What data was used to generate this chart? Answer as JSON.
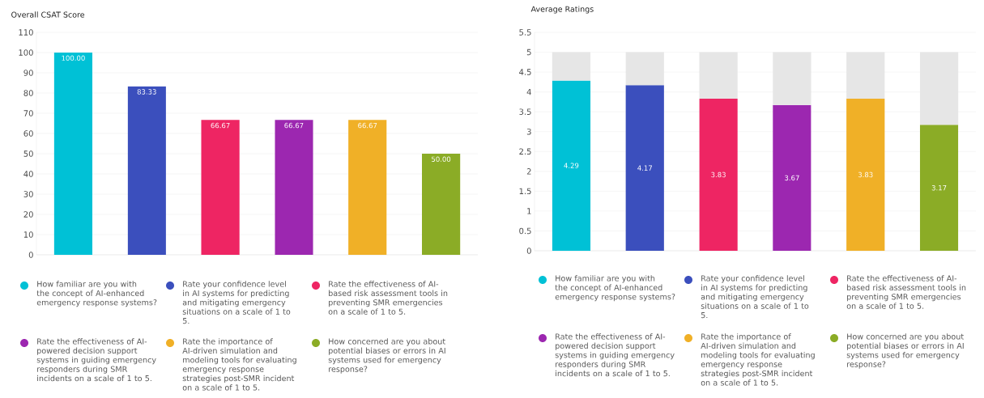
{
  "chart_data": [
    {
      "type": "bar",
      "title": "Overall CSAT Score",
      "categories": [
        null,
        null,
        null,
        null,
        null,
        null
      ],
      "series": [
        {
          "name": "How familiar are you with the concept of AI-enhanced emergency response systems?",
          "color": "#00c1d6",
          "values": [
            100,
            null,
            null,
            null,
            null,
            null
          ],
          "value_labels": [
            "100.00",
            null,
            null,
            null,
            null,
            null
          ]
        },
        {
          "name": "Rate your confidence level in AI systems for predicting and mitigating emergency situations on a scale of 1 to 5.",
          "color": "#3b4fbd",
          "values": [
            null,
            83.33,
            null,
            null,
            null,
            null
          ],
          "value_labels": [
            null,
            "83.33",
            null,
            null,
            null,
            null
          ]
        },
        {
          "name": "Rate the effectiveness of AI-based risk assessment tools in preventing SMR emergencies on a scale of 1 to 5.",
          "color": "#ee2563",
          "values": [
            null,
            null,
            66.67,
            null,
            null,
            null
          ],
          "value_labels": [
            null,
            null,
            "66.67",
            null,
            null,
            null
          ]
        },
        {
          "name": "Rate the effectiveness of AI-powered decision support systems in guiding emergency responders during SMR incidents on a scale of 1 to 5.",
          "color": "#9c27b0",
          "values": [
            null,
            null,
            null,
            66.67,
            null,
            null
          ],
          "value_labels": [
            null,
            null,
            null,
            "66.67",
            null,
            null
          ]
        },
        {
          "name": "Rate the importance of AI-driven simulation and modeling tools for evaluating emergency response strategies post-SMR incident on a scale of 1 to 5.",
          "color": "#f0b027",
          "values": [
            null,
            null,
            null,
            null,
            66.67,
            null
          ],
          "value_labels": [
            null,
            null,
            null,
            null,
            "66.67",
            null
          ]
        },
        {
          "name": "How concerned are you about potential biases or errors in AI systems used for emergency response?",
          "color": "#8bac26",
          "values": [
            null,
            null,
            null,
            null,
            null,
            50
          ],
          "value_labels": [
            null,
            null,
            null,
            null,
            null,
            "50.00"
          ]
        }
      ],
      "ylim": [
        0,
        110
      ],
      "yticks": [
        0,
        10,
        20,
        30,
        40,
        50,
        60,
        70,
        80,
        90,
        100,
        110
      ],
      "grid": "y",
      "legend": "bottom"
    },
    {
      "type": "bar",
      "title": "Average Ratings",
      "stacked": true,
      "categories": [
        null,
        null,
        null,
        null,
        null,
        null
      ],
      "series": [
        {
          "name": "How familiar are you with the concept of AI-enhanced emergency response systems?",
          "color": "#00c1d6",
          "values": [
            4.29,
            null,
            null,
            null,
            null,
            null
          ],
          "value_labels": [
            "4.29",
            null,
            null,
            null,
            null,
            null
          ]
        },
        {
          "name": "Rate your confidence level in AI systems for predicting and mitigating emergency situations on a scale of 1 to 5.",
          "color": "#3b4fbd",
          "values": [
            null,
            4.17,
            null,
            null,
            null,
            null
          ],
          "value_labels": [
            null,
            "4.17",
            null,
            null,
            null,
            null
          ]
        },
        {
          "name": "Rate the effectiveness of AI-based risk assessment tools in preventing SMR emergencies on a scale of 1 to 5.",
          "color": "#ee2563",
          "values": [
            null,
            null,
            3.83,
            null,
            null,
            null
          ],
          "value_labels": [
            null,
            null,
            "3.83",
            null,
            null,
            null
          ]
        },
        {
          "name": "Rate the effectiveness of AI-powered decision support systems in guiding emergency responders during SMR incidents on a scale of 1 to 5.",
          "color": "#9c27b0",
          "values": [
            null,
            null,
            null,
            3.67,
            null,
            null
          ],
          "value_labels": [
            null,
            null,
            null,
            "3.67",
            null,
            null
          ]
        },
        {
          "name": "Rate the importance of AI-driven simulation and modeling tools for evaluating emergency response strategies post-SMR incident on a scale of 1 to 5.",
          "color": "#f0b027",
          "values": [
            null,
            null,
            null,
            null,
            3.83,
            null
          ],
          "value_labels": [
            null,
            null,
            null,
            null,
            "3.83",
            null
          ]
        },
        {
          "name": "How concerned are you about potential biases or errors in AI systems used for emergency response?",
          "color": "#8bac26",
          "values": [
            null,
            null,
            null,
            null,
            null,
            3.17
          ],
          "value_labels": [
            null,
            null,
            null,
            null,
            null,
            "3.17"
          ]
        },
        {
          "color": "#e6e6e6",
          "values": [
            0.71,
            0.83,
            1.17,
            1.33,
            1.17,
            1.83
          ]
        }
      ],
      "ylim": [
        0,
        5.5
      ],
      "yticks": [
        0,
        0.5,
        1,
        1.5,
        2,
        2.5,
        3,
        3.5,
        4,
        4.5,
        5,
        5.5
      ],
      "grid": "y",
      "legend": "bottom"
    }
  ]
}
